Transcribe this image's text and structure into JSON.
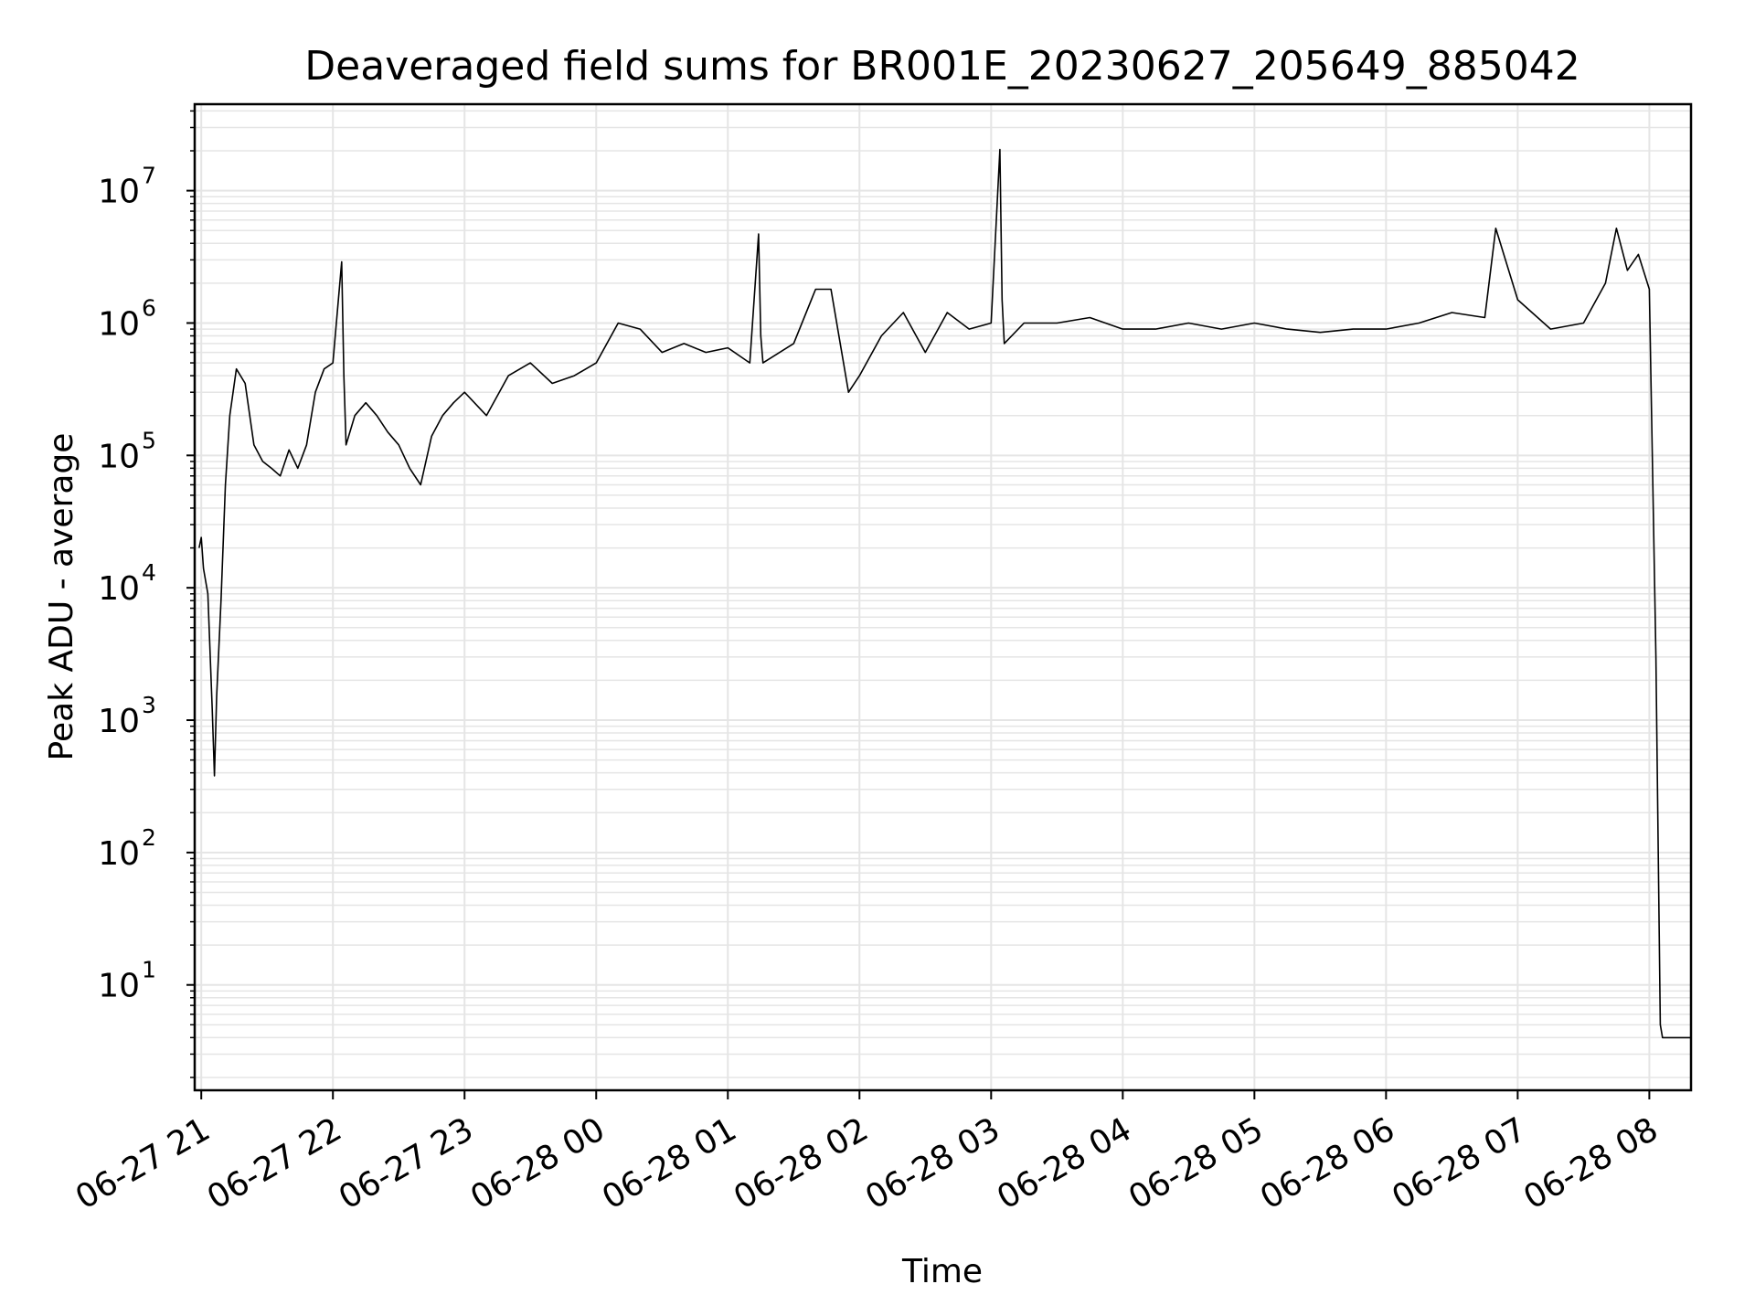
{
  "chart_data": {
    "type": "line",
    "title": "Deaveraged field sums for BR001E_20230627_205649_885042",
    "xlabel": "Time",
    "ylabel": "Peak ADU - average",
    "yscale": "log",
    "ylim": [
      1.6,
      45000000
    ],
    "xlim": [
      "2023-06-27 20:57",
      "2023-06-28 08:19"
    ],
    "grid": true,
    "line_color": "#000000",
    "grid_color": "#e5e5e5",
    "x_ticks": [
      "06-27 21",
      "06-27 22",
      "06-27 23",
      "06-28 00",
      "06-28 01",
      "06-28 02",
      "06-28 03",
      "06-28 04",
      "06-28 05",
      "06-28 06",
      "06-28 07",
      "06-28 08"
    ],
    "y_ticks": [
      {
        "base": "10",
        "exp": "1",
        "value": 10
      },
      {
        "base": "10",
        "exp": "2",
        "value": 100
      },
      {
        "base": "10",
        "exp": "3",
        "value": 1000
      },
      {
        "base": "10",
        "exp": "4",
        "value": 10000
      },
      {
        "base": "10",
        "exp": "5",
        "value": 100000
      },
      {
        "base": "10",
        "exp": "6",
        "value": 1000000
      },
      {
        "base": "10",
        "exp": "7",
        "value": 10000000
      }
    ],
    "series": [
      {
        "x": [
          "2023-06-27 20:59",
          "2023-06-27 21:00",
          "2023-06-27 21:01",
          "2023-06-27 21:03",
          "2023-06-27 21:05",
          "2023-06-27 21:06",
          "2023-06-27 21:07",
          "2023-06-27 21:09",
          "2023-06-27 21:11",
          "2023-06-27 21:13",
          "2023-06-27 21:16",
          "2023-06-27 21:20",
          "2023-06-27 21:24",
          "2023-06-27 21:28",
          "2023-06-27 21:32",
          "2023-06-27 21:36",
          "2023-06-27 21:40",
          "2023-06-27 21:44",
          "2023-06-27 21:48",
          "2023-06-27 21:52",
          "2023-06-27 21:56",
          "2023-06-27 22:00",
          "2023-06-27 22:04",
          "2023-06-27 22:05",
          "2023-06-27 22:06",
          "2023-06-27 22:10",
          "2023-06-27 22:15",
          "2023-06-27 22:20",
          "2023-06-27 22:25",
          "2023-06-27 22:30",
          "2023-06-27 22:35",
          "2023-06-27 22:40",
          "2023-06-27 22:45",
          "2023-06-27 22:50",
          "2023-06-27 22:55",
          "2023-06-27 23:00",
          "2023-06-27 23:10",
          "2023-06-27 23:20",
          "2023-06-27 23:30",
          "2023-06-27 23:40",
          "2023-06-27 23:50",
          "2023-06-28 00:00",
          "2023-06-28 00:10",
          "2023-06-28 00:20",
          "2023-06-28 00:30",
          "2023-06-28 00:40",
          "2023-06-28 00:50",
          "2023-06-28 01:00",
          "2023-06-28 01:10",
          "2023-06-28 01:14",
          "2023-06-28 01:15",
          "2023-06-28 01:16",
          "2023-06-28 01:30",
          "2023-06-28 01:40",
          "2023-06-28 01:47",
          "2023-06-28 01:55",
          "2023-06-28 02:00",
          "2023-06-28 02:10",
          "2023-06-28 02:20",
          "2023-06-28 02:30",
          "2023-06-28 02:40",
          "2023-06-28 02:50",
          "2023-06-28 03:00",
          "2023-06-28 03:04",
          "2023-06-28 03:05",
          "2023-06-28 03:06",
          "2023-06-28 03:15",
          "2023-06-28 03:30",
          "2023-06-28 03:45",
          "2023-06-28 04:00",
          "2023-06-28 04:15",
          "2023-06-28 04:30",
          "2023-06-28 04:45",
          "2023-06-28 05:00",
          "2023-06-28 05:15",
          "2023-06-28 05:30",
          "2023-06-28 05:45",
          "2023-06-28 06:00",
          "2023-06-28 06:15",
          "2023-06-28 06:30",
          "2023-06-28 06:45",
          "2023-06-28 06:50",
          "2023-06-28 07:00",
          "2023-06-28 07:15",
          "2023-06-28 07:30",
          "2023-06-28 07:40",
          "2023-06-28 07:45",
          "2023-06-28 07:50",
          "2023-06-28 07:55",
          "2023-06-28 08:00",
          "2023-06-28 08:03",
          "2023-06-28 08:05",
          "2023-06-28 08:06",
          "2023-06-28 08:10",
          "2023-06-28 08:19"
        ],
        "y": [
          20000,
          24000,
          14000,
          9000,
          1200,
          380,
          1500,
          8000,
          60000,
          200000,
          450000,
          350000,
          120000,
          90000,
          80000,
          70000,
          110000,
          80000,
          120000,
          300000,
          450000,
          500000,
          2900000,
          400000,
          120000,
          200000,
          250000,
          200000,
          150000,
          120000,
          80000,
          60000,
          140000,
          200000,
          250000,
          300000,
          200000,
          400000,
          500000,
          350000,
          400000,
          500000,
          1000000,
          900000,
          600000,
          700000,
          600000,
          650000,
          500000,
          4700000,
          800000,
          500000,
          700000,
          1800000,
          1800000,
          300000,
          400000,
          800000,
          1200000,
          600000,
          1200000,
          900000,
          1000000,
          20500000,
          1500000,
          700000,
          1000000,
          1000000,
          1100000,
          900000,
          900000,
          1000000,
          900000,
          1000000,
          900000,
          850000,
          900000,
          900000,
          1000000,
          1200000,
          1100000,
          5200000,
          1500000,
          900000,
          1000000,
          2000000,
          5200000,
          2500000,
          3300000,
          1800000,
          3000,
          5,
          4,
          4,
          4
        ]
      }
    ]
  }
}
